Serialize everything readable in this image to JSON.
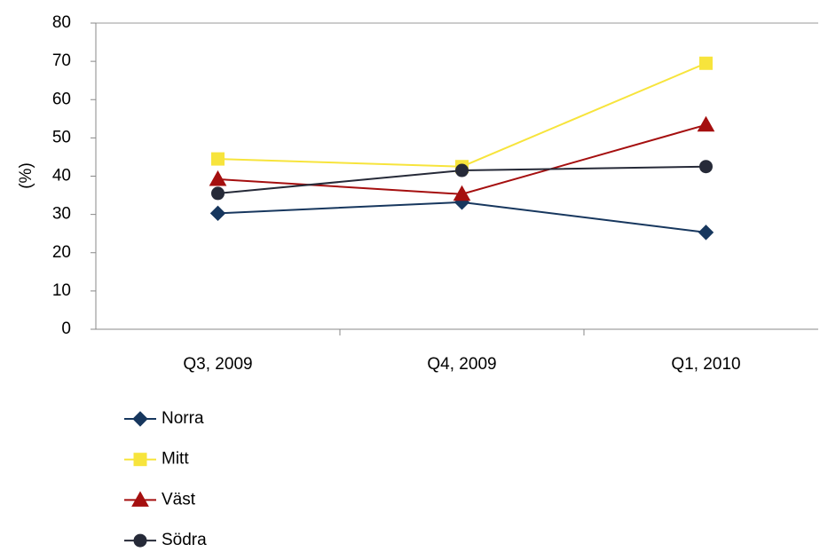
{
  "chart_data": {
    "type": "line",
    "y_label": "(%)",
    "categories": [
      "Q3, 2009",
      "Q4, 2009",
      "Q1, 2010"
    ],
    "series": [
      {
        "name": "Norra",
        "color": "#17375e",
        "marker": "diamond",
        "values": [
          30.3,
          33.2,
          25.3
        ]
      },
      {
        "name": "Mitt",
        "color": "#f7e43c",
        "marker": "square",
        "values": [
          44.5,
          42.5,
          69.5
        ]
      },
      {
        "name": "Väst",
        "color": "#a50f0f",
        "marker": "triangle",
        "values": [
          39.2,
          35.3,
          53.4
        ]
      },
      {
        "name": "Södra",
        "color": "#262a38",
        "marker": "circle",
        "values": [
          35.5,
          41.5,
          42.5
        ]
      }
    ],
    "ylim": [
      0,
      80
    ],
    "yticks": [
      0,
      10,
      20,
      30,
      40,
      50,
      60,
      70,
      80
    ],
    "legend": "bottom-left"
  }
}
